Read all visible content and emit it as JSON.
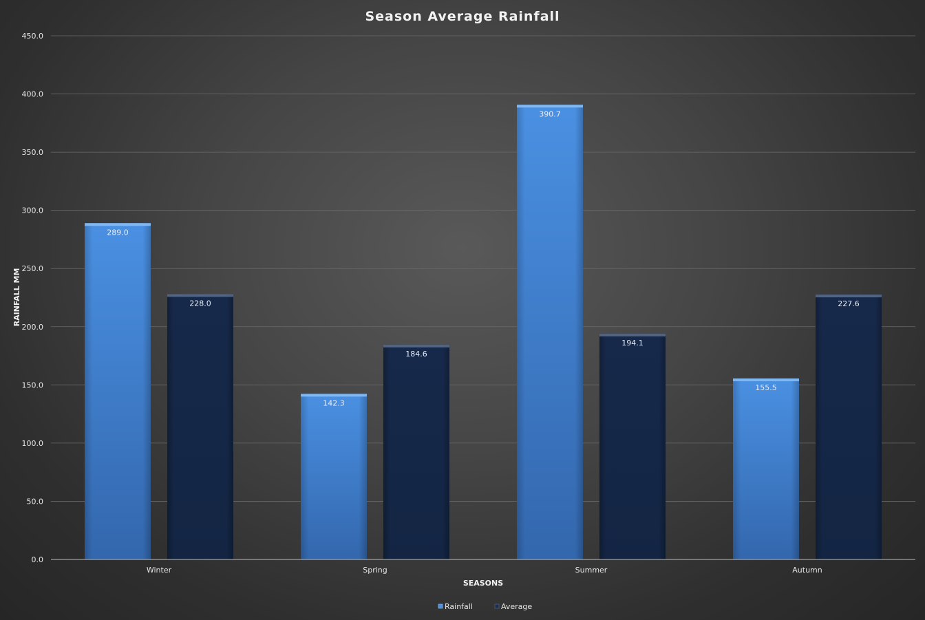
{
  "chart_data": {
    "type": "bar",
    "title": "Season Average Rainfall",
    "xlabel": "SEASONS",
    "ylabel": "RAINFALL MM",
    "categories": [
      "Winter",
      "Spring",
      "Summer",
      "Autumn"
    ],
    "series": [
      {
        "name": "Rainfall",
        "values": [
          289.0,
          142.3,
          390.7,
          155.5
        ],
        "color": "#3f83d6"
      },
      {
        "name": "Average",
        "values": [
          228.0,
          184.6,
          194.1,
          227.6
        ],
        "color": "#152948"
      }
    ],
    "ylim": [
      0,
      450
    ],
    "y_ticks": [
      "0.0",
      "50.0",
      "100.0",
      "150.0",
      "200.0",
      "250.0",
      "300.0",
      "350.0",
      "400.0",
      "450.0"
    ],
    "data_labels": [
      [
        "289.0",
        "142.3",
        "390.7",
        "155.5"
      ],
      [
        "228.0",
        "184.6",
        "194.1",
        "227.6"
      ]
    ],
    "grid": true,
    "legend_position": "bottom-center"
  }
}
